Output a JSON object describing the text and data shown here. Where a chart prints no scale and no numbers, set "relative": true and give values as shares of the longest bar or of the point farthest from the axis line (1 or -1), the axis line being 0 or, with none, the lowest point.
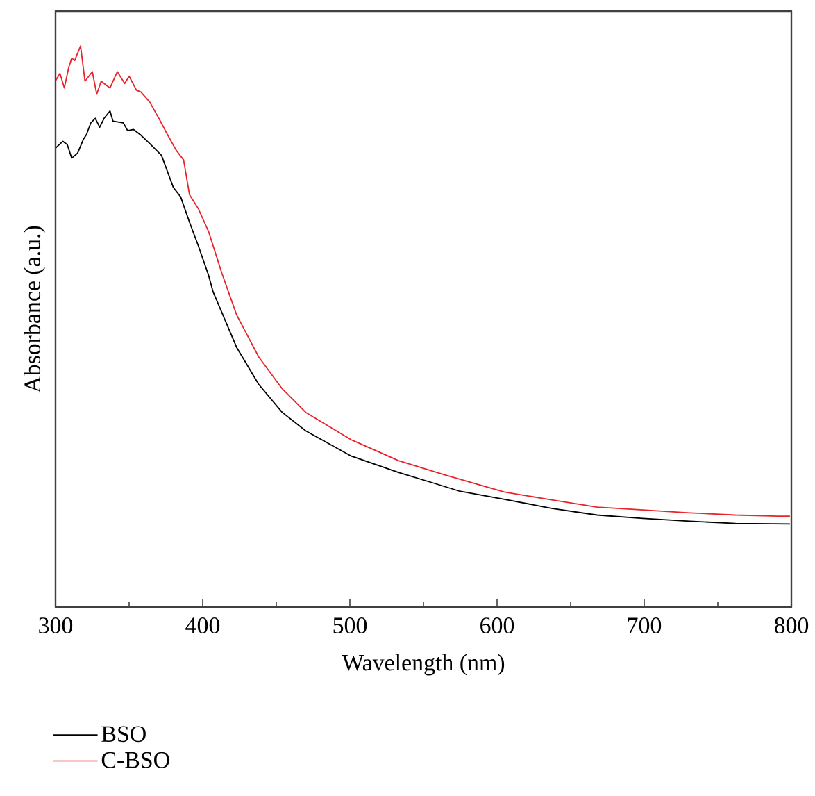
{
  "chart_data": {
    "type": "line",
    "xlabel": "Wavelength (nm)",
    "ylabel": "Absorbance (a.u.)",
    "relative": true,
    "xlim": [
      300,
      800
    ],
    "xticks": [
      300,
      400,
      500,
      600,
      700,
      800
    ],
    "legend": "bottom",
    "grid": false,
    "line_style": "solid",
    "marker": "none",
    "series": [
      {
        "name": "BSO",
        "color": "#000000",
        "x": [
          300,
          305,
          308,
          311,
          315,
          319,
          321,
          324,
          327,
          330,
          333,
          337,
          339,
          346,
          349,
          353,
          358,
          364,
          372,
          380,
          385,
          391,
          397,
          404,
          407,
          423,
          438,
          454,
          470,
          501,
          533,
          558,
          574,
          605,
          637,
          668,
          699,
          731,
          762,
          799
        ],
        "values": [
          0.818,
          0.83,
          0.824,
          0.8,
          0.809,
          0.834,
          0.842,
          0.863,
          0.871,
          0.855,
          0.871,
          0.884,
          0.866,
          0.863,
          0.849,
          0.851,
          0.841,
          0.826,
          0.805,
          0.748,
          0.731,
          0.686,
          0.644,
          0.591,
          0.562,
          0.463,
          0.397,
          0.347,
          0.314,
          0.269,
          0.24,
          0.22,
          0.207,
          0.192,
          0.176,
          0.164,
          0.158,
          0.153,
          0.149,
          0.148
        ]
      },
      {
        "name": "C-BSO",
        "color": "#e8232a",
        "x": [
          300,
          303,
          306,
          309,
          311,
          313,
          317,
          320,
          325,
          328,
          331,
          337,
          342,
          347,
          350,
          355,
          358,
          364,
          371,
          375,
          382,
          387,
          391,
          397,
          404,
          413,
          423,
          438,
          454,
          470,
          501,
          533,
          564,
          589,
          605,
          637,
          668,
          699,
          731,
          762,
          791,
          799
        ],
        "values": [
          0.938,
          0.951,
          0.925,
          0.962,
          0.978,
          0.974,
          1.0,
          0.937,
          0.954,
          0.914,
          0.937,
          0.925,
          0.954,
          0.933,
          0.946,
          0.921,
          0.918,
          0.9,
          0.867,
          0.847,
          0.814,
          0.797,
          0.735,
          0.71,
          0.669,
          0.595,
          0.521,
          0.446,
          0.389,
          0.347,
          0.298,
          0.261,
          0.236,
          0.217,
          0.205,
          0.191,
          0.178,
          0.173,
          0.168,
          0.164,
          0.162,
          0.162
        ]
      }
    ]
  }
}
